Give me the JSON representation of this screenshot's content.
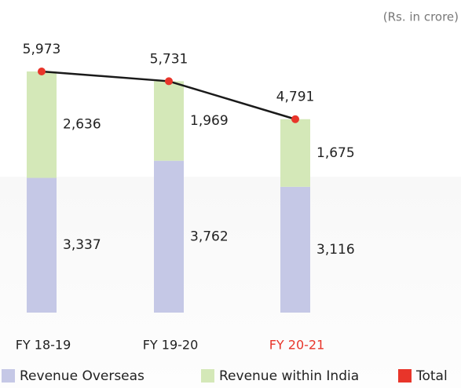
{
  "chart_data": {
    "type": "stacked_bar_line",
    "subtitle": "(Rs. in crore)",
    "categories": [
      "FY 18-19",
      "FY 19-20",
      "FY 20-21"
    ],
    "category_label_colors": [
      "#222222",
      "#222222",
      "#e8352a"
    ],
    "series": [
      {
        "name": "Revenue Overseas",
        "color": "#c5c8e6",
        "values": [
          3337,
          3762,
          3116
        ],
        "value_labels": [
          "3,337",
          "3,762",
          "3,116"
        ]
      },
      {
        "name": "Revenue within India",
        "color": "#d4e8b8",
        "values": [
          2636,
          1969,
          1675
        ],
        "value_labels": [
          "2,636",
          "1,969",
          "1,675"
        ]
      },
      {
        "name": "Total",
        "color": "#e8352a",
        "line_color": "#1a1a1a",
        "values": [
          5973,
          5731,
          4791
        ],
        "value_labels": [
          "5,973",
          "5,731",
          "4,791"
        ]
      }
    ]
  }
}
